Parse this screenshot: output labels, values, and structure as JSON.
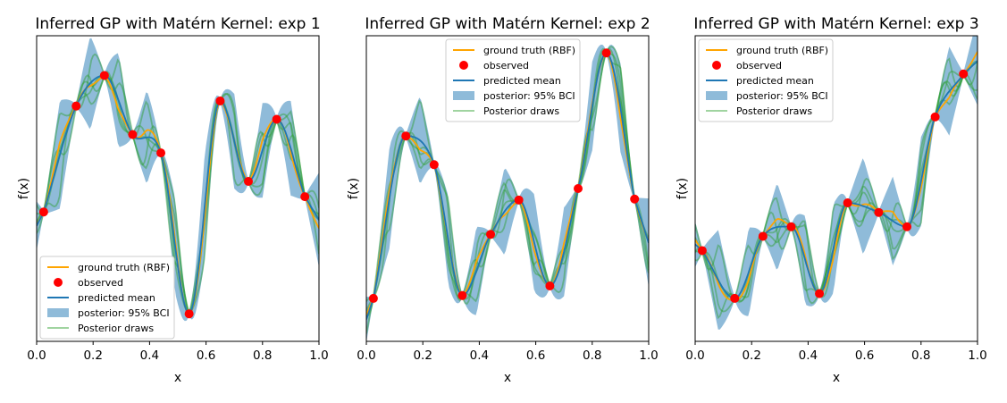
{
  "chart_data": [
    {
      "type": "line",
      "title": "Inferred GP with Matérn Kernel: exp 1",
      "xlabel": "x",
      "ylabel": "f(x)",
      "xlim": [
        0.0,
        1.0
      ],
      "ylim": [
        -1.55,
        1.45
      ],
      "xticks": [
        "0.0",
        "0.2",
        "0.4",
        "0.6",
        "0.8",
        "1.0"
      ],
      "yticks_visible": false,
      "legend_position": "lower-left",
      "legend": [
        "ground truth (RBF)",
        "observed",
        "predicted mean",
        "posterior: 95% BCI",
        "Posterior draws"
      ],
      "colors": {
        "truth": "#ffa500",
        "observed": "#ff0000",
        "mean": "#1f77b4",
        "band": "#1f77b4",
        "draws": "#2ca02c"
      },
      "observed": {
        "x": [
          0.025,
          0.14,
          0.24,
          0.34,
          0.44,
          0.54,
          0.65,
          0.75,
          0.85,
          0.95
        ],
        "y": [
          -0.28,
          0.76,
          1.06,
          0.48,
          0.3,
          -1.28,
          0.81,
          0.02,
          0.63,
          -0.13
        ]
      }
    },
    {
      "type": "line",
      "title": "Inferred GP with Matérn Kernel: exp 2",
      "xlabel": "x",
      "ylabel": "f(x)",
      "xlim": [
        0.0,
        1.0
      ],
      "ylim": [
        -1.6,
        1.6
      ],
      "xticks": [
        "0.0",
        "0.2",
        "0.4",
        "0.6",
        "0.8",
        "1.0"
      ],
      "yticks_visible": false,
      "legend_position": "upper-center",
      "legend": [
        "ground truth (RBF)",
        "observed",
        "predicted mean",
        "posterior: 95% BCI",
        "Posterior draws"
      ],
      "colors": {
        "truth": "#ffa500",
        "observed": "#ff0000",
        "mean": "#1f77b4",
        "band": "#1f77b4",
        "draws": "#2ca02c"
      },
      "observed": {
        "x": [
          0.025,
          0.14,
          0.24,
          0.34,
          0.44,
          0.54,
          0.65,
          0.75,
          0.85,
          0.95
        ],
        "y": [
          -1.15,
          0.55,
          0.25,
          -1.12,
          -0.48,
          -0.12,
          -1.02,
          0.0,
          1.42,
          -0.11
        ]
      }
    },
    {
      "type": "line",
      "title": "Inferred GP with Matérn Kernel: exp 3",
      "xlabel": "x",
      "ylabel": "f(x)",
      "xlim": [
        0.0,
        1.0
      ],
      "ylim": [
        -1.3,
        1.9
      ],
      "xticks": [
        "0.0",
        "0.2",
        "0.4",
        "0.6",
        "0.8",
        "1.0"
      ],
      "yticks_visible": false,
      "legend_position": "upper-left",
      "legend": [
        "ground truth (RBF)",
        "observed",
        "predicted mean",
        "posterior: 95% BCI",
        "Posterior draws"
      ],
      "colors": {
        "truth": "#ffa500",
        "observed": "#ff0000",
        "mean": "#1f77b4",
        "band": "#1f77b4",
        "draws": "#2ca02c"
      },
      "observed": {
        "x": [
          0.025,
          0.14,
          0.24,
          0.34,
          0.44,
          0.54,
          0.65,
          0.75,
          0.85,
          0.95
        ],
        "y": [
          -0.35,
          -0.85,
          -0.2,
          -0.1,
          -0.8,
          0.15,
          0.05,
          -0.1,
          1.05,
          1.5
        ]
      }
    }
  ]
}
